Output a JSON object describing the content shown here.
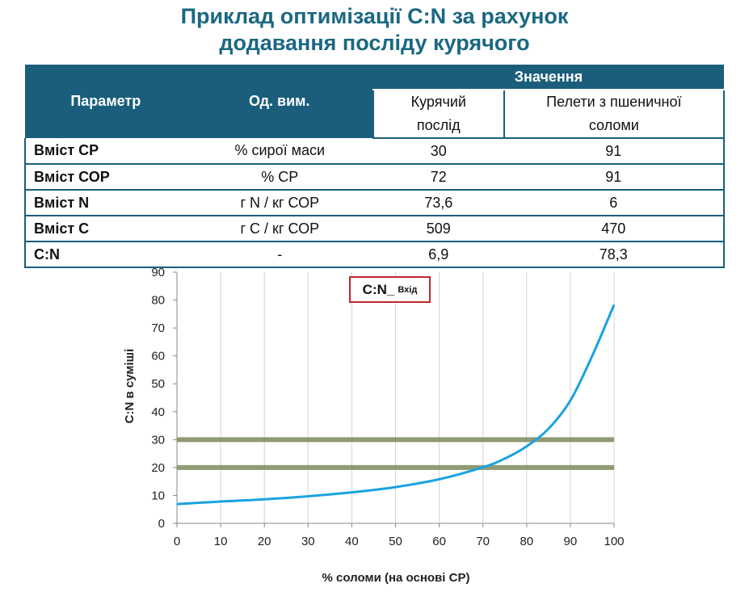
{
  "title": {
    "line1": "Приклад оптимізації C:N за рахунок",
    "line2": "додавання послiду курячого"
  },
  "table": {
    "header": {
      "param": "Параметр",
      "unit": "Од. вим.",
      "values": "Значення",
      "col1_line1": "Курячий",
      "col1_line2": "послід",
      "col2_line1": "Пелети з пшеничної",
      "col2_line2": "соломи"
    },
    "rows": [
      {
        "param": "Вміст СР",
        "unit": "% сирої маси",
        "v1": "30",
        "v2": "91"
      },
      {
        "param": "Вміст СОР",
        "unit": "% СР",
        "v1": "72",
        "v2": "91"
      },
      {
        "param": "Вміст N",
        "unit": "г N / кг СОР",
        "v1": "73,6",
        "v2": "6"
      },
      {
        "param": "Вміст С",
        "unit": "г С / кг СОР",
        "v1": "509",
        "v2": "470"
      },
      {
        "param": "C:N",
        "unit": "-",
        "v1": "6,9",
        "v2": "78,3"
      }
    ]
  },
  "chart_data": {
    "type": "line",
    "xlabel": "% соломи (на основі СР)",
    "ylabel": "C:N в суміші",
    "xlim": [
      0,
      100
    ],
    "ylim": [
      0,
      90
    ],
    "x_ticks": [
      "0",
      "10",
      "20",
      "30",
      "40",
      "50",
      "60",
      "70",
      "80",
      "90",
      "100"
    ],
    "y_ticks": [
      "0",
      "10",
      "20",
      "30",
      "40",
      "50",
      "60",
      "70",
      "80",
      "90"
    ],
    "grid": "vertical",
    "legend": {
      "main": "C:N_",
      "sub": "Вхід",
      "position": "top-center"
    },
    "reference_lines": [
      20,
      30
    ],
    "series": [
      {
        "color": "#1aa3e0",
        "x": [
          0,
          10,
          20,
          30,
          40,
          50,
          60,
          70,
          75,
          80,
          85,
          90,
          95,
          100
        ],
        "y": [
          6.9,
          7.8,
          8.6,
          9.7,
          11.1,
          13.0,
          15.8,
          20.1,
          23.2,
          27.6,
          33.9,
          44.0,
          60.0,
          78.3
        ]
      }
    ],
    "colors": {
      "line": "#1aa3e0",
      "reference": "#7b8a5a",
      "legend_border": "#c0262c"
    }
  }
}
